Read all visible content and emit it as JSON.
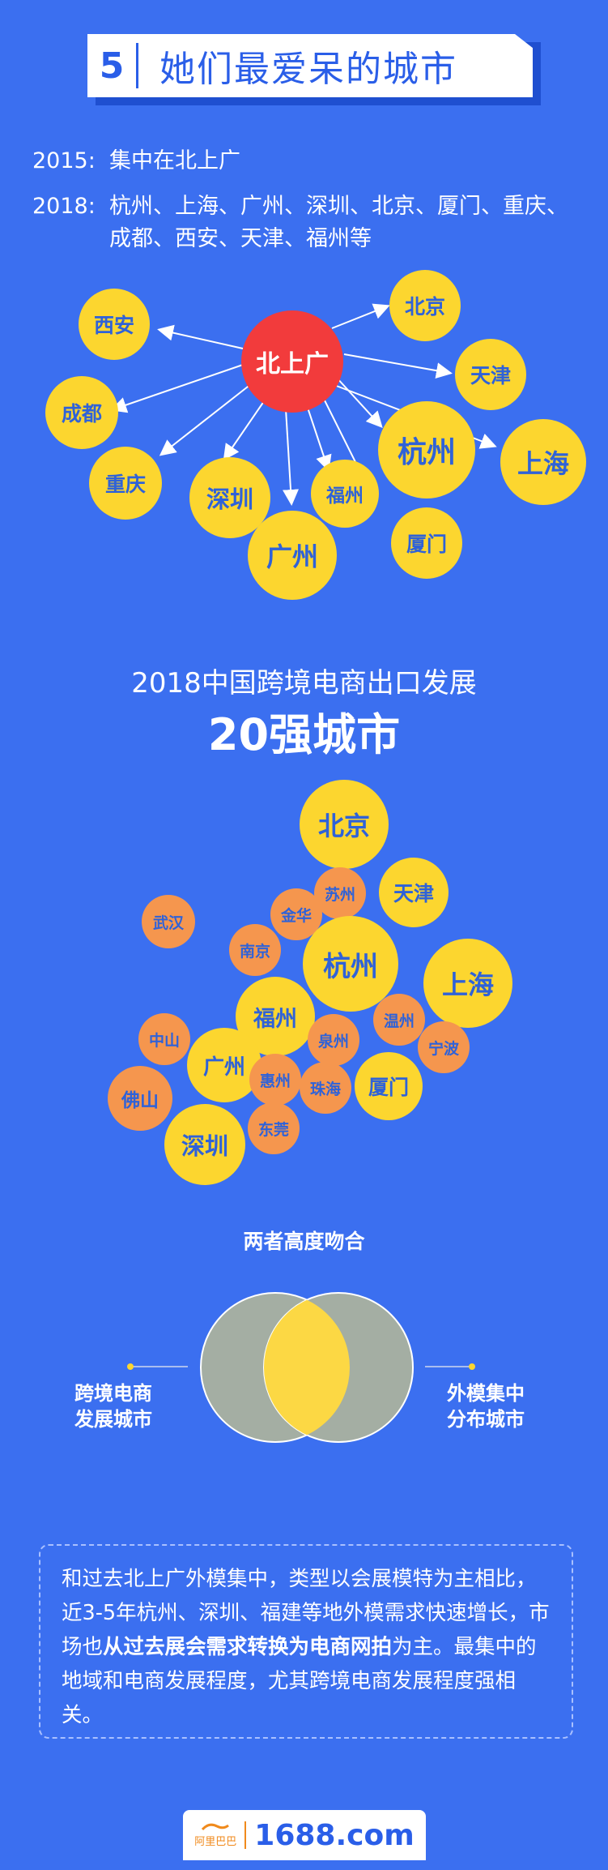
{
  "header": {
    "number": "5",
    "title": "她们最爱呆的城市"
  },
  "timeline": {
    "y2015": {
      "year": "2015:",
      "text": "集中在北上广"
    },
    "y2018": {
      "year": "2018:",
      "line1": "杭州、上海、广州、深圳、北京、厦门、重庆、",
      "line2": "成都、西安、天津、福州等"
    }
  },
  "map1": {
    "center": "北上广",
    "cities": {
      "xian": "西安",
      "beijing": "北京",
      "tianjin": "天津",
      "chengdu": "成都",
      "hangzhou": "杭州",
      "shanghai": "上海",
      "chongqing": "重庆",
      "shenzhen": "深圳",
      "fuzhou": "福州",
      "guangzhou": "广州",
      "xiamen": "厦门"
    },
    "colors": {
      "center": "#f23b3c",
      "city": "#fcd62f"
    }
  },
  "section2": {
    "title": "2018中国跨境电商出口发展",
    "big": "20强城市"
  },
  "map2": {
    "cities": {
      "beijing": "北京",
      "suzhou": "苏州",
      "tianjin": "天津",
      "wuhan": "武汉",
      "jinhua": "金华",
      "nanjing": "南京",
      "hangzhou": "杭州",
      "shanghai": "上海",
      "fuzhou": "福州",
      "wenzhou": "温州",
      "zhongshan": "中山",
      "quanzhou": "泉州",
      "ningbo": "宁波",
      "guangzhou": "广州",
      "foshan": "佛山",
      "huizhou": "惠州",
      "zhuhai": "珠海",
      "xiamen": "厦门",
      "dongguan": "东莞",
      "shenzhen": "深圳"
    },
    "colors": {
      "major": "#fcd62f",
      "minor": "#f5964e"
    }
  },
  "venn": {
    "title": "两者高度吻合",
    "left_label_1": "跨境电商",
    "left_label_2": "发展城市",
    "right_label_1": "外模集中",
    "right_label_2": "分布城市"
  },
  "summary": {
    "part1": "和过去北上广外模集中，类型以会展模特为主相比，近3-5年杭州、深圳、福建等地外模需求快速增长，市场也",
    "bold": "从过去展会需求转换为电商网拍",
    "part2": "为主。最集中的地域和电商发展程度，尤其跨境电商发展程度强相关。"
  },
  "footer": {
    "logo_cn": "阿里巴巴",
    "logo_en": "1688.com"
  }
}
